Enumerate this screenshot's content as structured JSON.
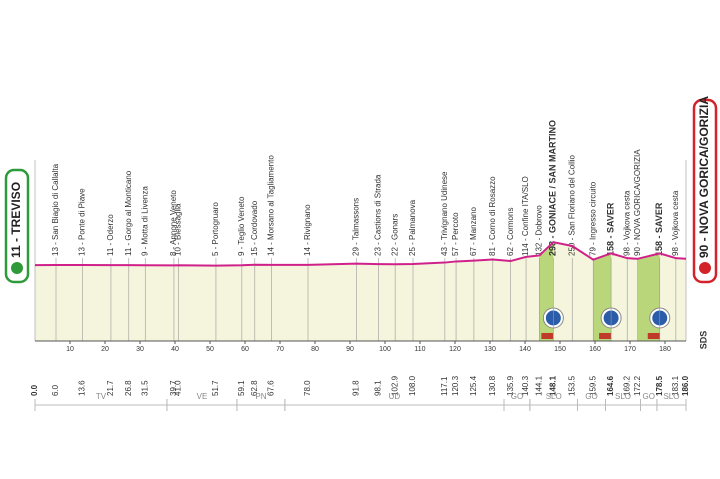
{
  "chart_data": {
    "type": "profile",
    "start": {
      "km": {
        "value": 0,
        "label": "0.0"
      },
      "label": "11 - TREVISO",
      "elevation": 11
    },
    "end": {
      "km": {
        "value": 186,
        "label": "186.0"
      },
      "label": "90 - NOVA GORICA/GORIZIA",
      "elevation": 90
    },
    "waypoints": [
      {
        "km": {
          "value": 6,
          "label": "6.0"
        },
        "label": "13 - San Biagio di Callalta",
        "elevation": 13
      },
      {
        "km": {
          "value": 13.6,
          "label": "13.6"
        },
        "label": "13 - Ponte di Piave",
        "elevation": 13
      },
      {
        "km": {
          "value": 21.7,
          "label": "21.7"
        },
        "label": "11 - Oderzo",
        "elevation": 11
      },
      {
        "km": {
          "value": 26.8,
          "label": "26.8"
        },
        "label": "11 - Gorgo al Monticano",
        "elevation": 11
      },
      {
        "km": {
          "value": 31.5,
          "label": "31.5"
        },
        "label": "9 - Motta di Livenza",
        "elevation": 9
      },
      {
        "km": {
          "value": 39.7,
          "label": "39.7"
        },
        "label": "8 - Annone Veneto",
        "elevation": 8
      },
      {
        "km": {
          "value": 41,
          "label": "41.0"
        },
        "label": "10 - Blessaglia",
        "elevation": 10
      },
      {
        "km": {
          "value": 51.7,
          "label": "51.7"
        },
        "label": "5 - Portogruaro",
        "elevation": 5
      },
      {
        "km": {
          "value": 59.1,
          "label": "59.1"
        },
        "label": "9 - Teglio Veneto",
        "elevation": 9
      },
      {
        "km": {
          "value": 62.8,
          "label": "62.8"
        },
        "label": "15 - Cordovado",
        "elevation": 15
      },
      {
        "km": {
          "value": 67.6,
          "label": "67.6"
        },
        "label": "14 - Morsano al Tagliamento",
        "elevation": 14
      },
      {
        "km": {
          "value": 78,
          "label": "78.0"
        },
        "label": "14 - Rivignano",
        "elevation": 14
      },
      {
        "km": {
          "value": 91.8,
          "label": "91.8"
        },
        "label": "29 - Talmassons",
        "elevation": 29
      },
      {
        "km": {
          "value": 98.1,
          "label": "98.1"
        },
        "label": "23 - Castions di Strada",
        "elevation": 23
      },
      {
        "km": {
          "value": 102.9,
          "label": "102.9"
        },
        "label": "22 - Gonars",
        "elevation": 22
      },
      {
        "km": {
          "value": 108,
          "label": "108.0"
        },
        "label": "25 - Palmanova",
        "elevation": 25
      },
      {
        "km": {
          "value": 117.1,
          "label": "117.1"
        },
        "label": "43 - Trivignano Udinese",
        "elevation": 43
      },
      {
        "km": {
          "value": 120.3,
          "label": "120.3"
        },
        "label": "57 - Percoto",
        "elevation": 57
      },
      {
        "km": {
          "value": 125.4,
          "label": "125.4"
        },
        "label": "67 - Manzano",
        "elevation": 67
      },
      {
        "km": {
          "value": 130.8,
          "label": "130.8"
        },
        "label": "81 - Corno di Rosazzo",
        "elevation": 81
      },
      {
        "km": {
          "value": 135.9,
          "label": "135.9"
        },
        "label": "62 - Cormons",
        "elevation": 62
      },
      {
        "km": {
          "value": 140.3,
          "label": "140.3"
        },
        "label": "114 - Confine ITA/SLO",
        "elevation": 114
      },
      {
        "km": {
          "value": 144.1,
          "label": "144.1"
        },
        "label": "132 - Dobrovo",
        "elevation": 132
      },
      {
        "km": {
          "value": 148.1,
          "label": "148.1"
        },
        "label": "298 - GONIACE / SAN MARTINO",
        "elevation": 298,
        "kom": true
      },
      {
        "km": {
          "value": 153.5,
          "label": "153.5"
        },
        "label": "250 - San Floriano del Collio",
        "elevation": 250
      },
      {
        "km": {
          "value": 159.5,
          "label": "159.5"
        },
        "label": "79 - Ingresso circuito",
        "elevation": 79
      },
      {
        "km": {
          "value": 164.6,
          "label": "164.6"
        },
        "label": "158 - SAVER",
        "elevation": 158,
        "kom": true
      },
      {
        "km": {
          "value": 169.2,
          "label": "169.2"
        },
        "label": "98 - Vojkova cesta",
        "elevation": 98
      },
      {
        "km": {
          "value": 172.2,
          "label": "172.2"
        },
        "label": "90 - NOVA GORICA/GORIZIA",
        "elevation": 90
      },
      {
        "km": {
          "value": 178.5,
          "label": "178.5"
        },
        "label": "158 - SAVER",
        "elevation": 158,
        "kom": true
      },
      {
        "km": {
          "value": 183.1,
          "label": "183.1"
        },
        "label": "98 - Vojkova cesta",
        "elevation": 98
      }
    ],
    "xticks": [
      10,
      20,
      30,
      40,
      50,
      60,
      70,
      80,
      90,
      100,
      110,
      120,
      130,
      140,
      150,
      160,
      170,
      180
    ],
    "regions": [
      {
        "label": "TV",
        "from": 0,
        "to": 37.7
      },
      {
        "label": "VE",
        "from": 37.7,
        "to": 57.7
      },
      {
        "label": "PN",
        "from": 57.7,
        "to": 71.4
      },
      {
        "label": "UD",
        "from": 71.4,
        "to": 134
      },
      {
        "label": "GO",
        "from": 134,
        "to": 141.4
      },
      {
        "label": "SLO",
        "from": 141.4,
        "to": 155
      },
      {
        "label": "GO",
        "from": 155,
        "to": 163
      },
      {
        "label": "SLO",
        "from": 163,
        "to": 173
      },
      {
        "label": "GO",
        "from": 173,
        "to": 177.7
      },
      {
        "label": "SLO",
        "from": 177.7,
        "to": 186
      }
    ],
    "credit": "SDS",
    "line_color": "#d0218a",
    "fill_color": "#f4f5dc",
    "climb_color": "#b9d77a",
    "kom_color": "#2a5caa"
  }
}
